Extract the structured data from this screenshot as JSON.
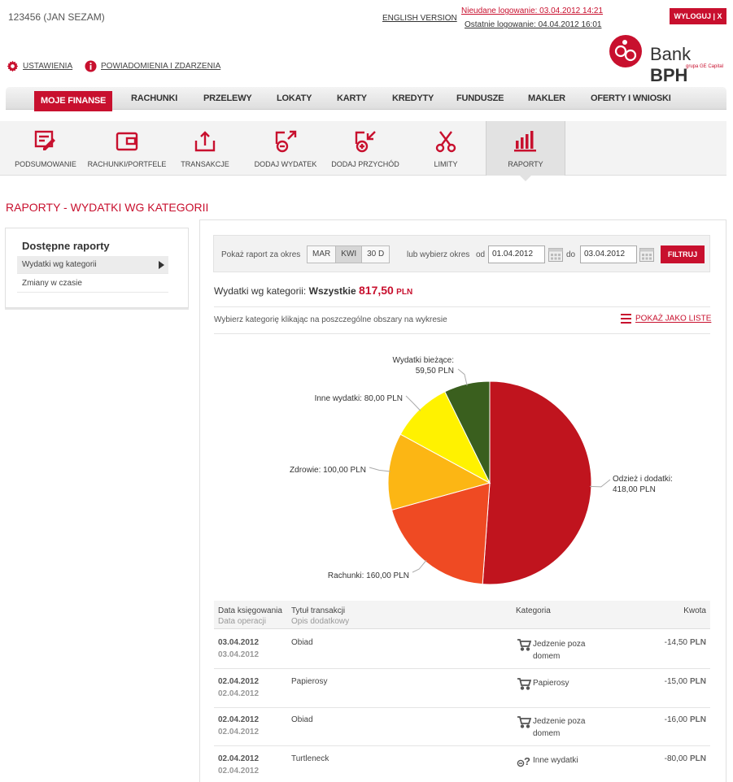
{
  "header": {
    "user_id": "123456 (JAN SEZAM)",
    "english_version": "ENGLISH VERSION",
    "failed_login": "Nieudane logowanie: 03.04.2012 14:21",
    "last_login": "Ostatnie logowanie: 04.04.2012 16:01",
    "logout": "WYLOGUJ | X",
    "logo_word": "Bank",
    "logo_brand": "BPH",
    "logo_sub": "grupa GE Capital",
    "settings": "USTAWIENIA",
    "notifications": "POWIADOMIENIA I ZDARZENIA"
  },
  "mainnav": {
    "items": [
      "MOJE FINANSE",
      "RACHUNKI",
      "PRZELEWY",
      "LOKATY",
      "KARTY",
      "KREDYTY",
      "FUNDUSZE",
      "MAKLER",
      "OFERTY I WNIOSKI"
    ],
    "active": "MOJE FINANSE"
  },
  "subnav": {
    "items": [
      {
        "label": "PODSUMOWANIE",
        "icon": "summary-icon"
      },
      {
        "label": "RACHUNKI/PORTFELE",
        "icon": "wallet-icon"
      },
      {
        "label": "TRANSAKCJE",
        "icon": "transactions-icon"
      },
      {
        "label": "DODAJ WYDATEK",
        "icon": "add-expense-icon"
      },
      {
        "label": "DODAJ PRZYCHÓD",
        "icon": "add-income-icon"
      },
      {
        "label": "LIMITY",
        "icon": "scissors-icon"
      },
      {
        "label": "RAPORTY",
        "icon": "bar-chart-icon"
      }
    ],
    "active": "RAPORTY"
  },
  "page_title": "RAPORTY - WYDATKI WG KATEGORII",
  "left_panel": {
    "title": "Dostępne raporty",
    "items": [
      "Wydatki wg kategorii",
      "Zmiany w czasie"
    ]
  },
  "filter": {
    "period_label": "Pokaż raport za okres",
    "periods": [
      "MAR",
      "KWI",
      "30 D"
    ],
    "selected_period": "KWI",
    "or_label": "lub wybierz okres",
    "from_label": "od",
    "from_value": "01.04.2012",
    "to_label": "do",
    "to_value": "03.04.2012",
    "filter_button": "FILTRUJ"
  },
  "summary": {
    "label": "Wydatki wg kategorii:",
    "category": "Wszystkie",
    "amount": "817,50",
    "currency": "PLN"
  },
  "hint": "Wybierz kategorię klikając na poszczególne obszary na wykresie",
  "show_list": "POKAŻ JAKO LISTE",
  "chart_data": {
    "type": "pie",
    "slices": [
      {
        "label": "Odzież i dodatki:",
        "amount": "418,00 PLN",
        "value": 418.0,
        "color": "#c0141e"
      },
      {
        "label": "Rachunki:",
        "amount": "160,00 PLN",
        "value": 160.0,
        "color": "#ef4a23"
      },
      {
        "label": "Zdrowie:",
        "amount": "100,00 PLN",
        "value": 100.0,
        "color": "#fcb614"
      },
      {
        "label": "Inne wydatki:",
        "amount": "80,00 PLN",
        "value": 80.0,
        "color": "#fff200"
      },
      {
        "label": "Wydatki bieżące:",
        "amount": "59,50 PLN",
        "value": 59.5,
        "color": "#3a5f1e"
      }
    ]
  },
  "table": {
    "headers": {
      "date": "Data księgowania",
      "date_sub": "Data operacji",
      "title": "Tytuł transakcji",
      "title_sub": "Opis dodatkowy",
      "category": "Kategoria",
      "amount": "Kwota"
    },
    "rows": [
      {
        "date1": "03.04.2012",
        "date2": "03.04.2012",
        "title": "Obiad",
        "category": "Jedzenie poza domem",
        "cat_icon": "cart-icon",
        "amount": "-14,50",
        "currency": "PLN"
      },
      {
        "date1": "02.04.2012",
        "date2": "02.04.2012",
        "title": "Papierosy",
        "category": "Papierosy",
        "cat_icon": "cart-icon",
        "amount": "-15,00",
        "currency": "PLN"
      },
      {
        "date1": "02.04.2012",
        "date2": "02.04.2012",
        "title": "Obiad",
        "category": "Jedzenie poza domem",
        "cat_icon": "cart-icon",
        "amount": "-16,00",
        "currency": "PLN"
      },
      {
        "date1": "02.04.2012",
        "date2": "02.04.2012",
        "title": "Turtleneck",
        "category": "Inne wydatki",
        "cat_icon": "question-icon",
        "amount": "-80,00",
        "currency": "PLN"
      }
    ]
  }
}
